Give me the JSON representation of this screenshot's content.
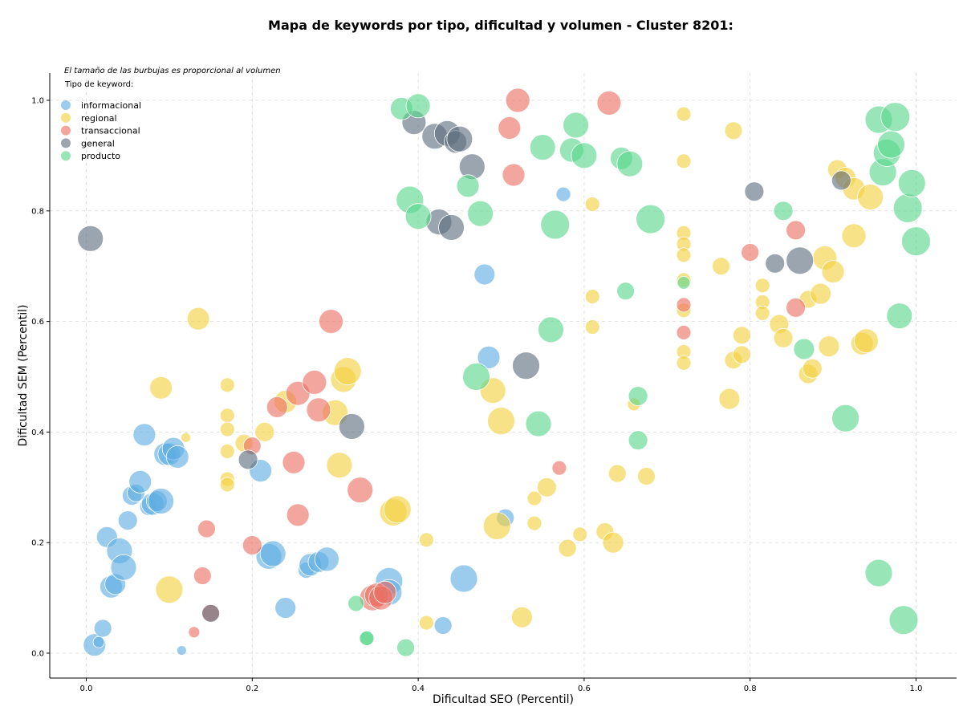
{
  "chart_data": {
    "type": "scatter",
    "title": "Mapa de keywords por tipo, dificultad y volumen - Cluster 8201:",
    "xlabel": "Dificultad SEO (Percentil)",
    "ylabel": "Dificultad SEM (Percentil)",
    "xlim": [
      -0.045,
      1.05
    ],
    "ylim": [
      -0.045,
      1.05
    ],
    "x_ticks": [
      "0.0",
      "0.2",
      "0.4",
      "0.6",
      "0.8",
      "1.0"
    ],
    "y_ticks": [
      "0.0",
      "0.2",
      "0.4",
      "0.6",
      "0.8",
      "1.0"
    ],
    "grid": true,
    "legend_position": "top-left",
    "annotation": "El tamaño de las burbujas es proporcional al volumen",
    "legend_title": "Tipo de keyword:",
    "series": [
      {
        "name": "informacional",
        "color": "#5DADE2",
        "points": [
          [
            0.01,
            0.015,
            14
          ],
          [
            0.015,
            0.02,
            7
          ],
          [
            0.02,
            0.045,
            11
          ],
          [
            0.025,
            0.21,
            13
          ],
          [
            0.03,
            0.12,
            14
          ],
          [
            0.035,
            0.125,
            13
          ],
          [
            0.04,
            0.185,
            16
          ],
          [
            0.045,
            0.155,
            16
          ],
          [
            0.05,
            0.24,
            12
          ],
          [
            0.055,
            0.285,
            12
          ],
          [
            0.06,
            0.29,
            11
          ],
          [
            0.065,
            0.31,
            14
          ],
          [
            0.07,
            0.395,
            14
          ],
          [
            0.075,
            0.265,
            11
          ],
          [
            0.08,
            0.27,
            14
          ],
          [
            0.085,
            0.275,
            13
          ],
          [
            0.09,
            0.275,
            16
          ],
          [
            0.095,
            0.36,
            14
          ],
          [
            0.1,
            0.36,
            14
          ],
          [
            0.105,
            0.37,
            14
          ],
          [
            0.11,
            0.355,
            14
          ],
          [
            0.115,
            0.005,
            6
          ],
          [
            0.21,
            0.33,
            14
          ],
          [
            0.22,
            0.175,
            16
          ],
          [
            0.225,
            0.18,
            16
          ],
          [
            0.24,
            0.082,
            13
          ],
          [
            0.265,
            0.15,
            10
          ],
          [
            0.27,
            0.16,
            14
          ],
          [
            0.28,
            0.165,
            13
          ],
          [
            0.29,
            0.17,
            15
          ],
          [
            0.365,
            0.13,
            17
          ],
          [
            0.365,
            0.11,
            16
          ],
          [
            0.43,
            0.05,
            11
          ],
          [
            0.455,
            0.135,
            17
          ],
          [
            0.48,
            0.685,
            13
          ],
          [
            0.485,
            0.535,
            14
          ],
          [
            0.505,
            0.245,
            11
          ],
          [
            0.575,
            0.83,
            9
          ]
        ]
      },
      {
        "name": "regional",
        "color": "#F4D03F",
        "points": [
          [
            0.09,
            0.48,
            14
          ],
          [
            0.1,
            0.115,
            17
          ],
          [
            0.12,
            0.39,
            6
          ],
          [
            0.135,
            0.605,
            14
          ],
          [
            0.17,
            0.485,
            9
          ],
          [
            0.17,
            0.43,
            9
          ],
          [
            0.17,
            0.405,
            9
          ],
          [
            0.17,
            0.365,
            9
          ],
          [
            0.17,
            0.315,
            9
          ],
          [
            0.17,
            0.305,
            9
          ],
          [
            0.19,
            0.38,
            11
          ],
          [
            0.215,
            0.4,
            12
          ],
          [
            0.24,
            0.455,
            14
          ],
          [
            0.3,
            0.435,
            16
          ],
          [
            0.305,
            0.34,
            16
          ],
          [
            0.31,
            0.495,
            16
          ],
          [
            0.315,
            0.51,
            17
          ],
          [
            0.37,
            0.255,
            17
          ],
          [
            0.375,
            0.26,
            17
          ],
          [
            0.41,
            0.055,
            9
          ],
          [
            0.41,
            0.205,
            9
          ],
          [
            0.49,
            0.475,
            16
          ],
          [
            0.495,
            0.23,
            17
          ],
          [
            0.5,
            0.42,
            17
          ],
          [
            0.525,
            0.065,
            13
          ],
          [
            0.54,
            0.28,
            9
          ],
          [
            0.54,
            0.235,
            9
          ],
          [
            0.555,
            0.3,
            12
          ],
          [
            0.58,
            0.19,
            11
          ],
          [
            0.595,
            0.215,
            9
          ],
          [
            0.61,
            0.812,
            9
          ],
          [
            0.61,
            0.645,
            9
          ],
          [
            0.61,
            0.59,
            9
          ],
          [
            0.625,
            0.22,
            11
          ],
          [
            0.635,
            0.2,
            13
          ],
          [
            0.64,
            0.325,
            11
          ],
          [
            0.66,
            0.45,
            8
          ],
          [
            0.675,
            0.32,
            11
          ],
          [
            0.72,
            0.975,
            9
          ],
          [
            0.72,
            0.89,
            9
          ],
          [
            0.72,
            0.76,
            9
          ],
          [
            0.72,
            0.74,
            9
          ],
          [
            0.72,
            0.72,
            9
          ],
          [
            0.72,
            0.675,
            9
          ],
          [
            0.72,
            0.62,
            9
          ],
          [
            0.72,
            0.545,
            9
          ],
          [
            0.72,
            0.525,
            9
          ],
          [
            0.765,
            0.7,
            11
          ],
          [
            0.775,
            0.46,
            13
          ],
          [
            0.78,
            0.945,
            11
          ],
          [
            0.78,
            0.53,
            11
          ],
          [
            0.79,
            0.54,
            11
          ],
          [
            0.79,
            0.575,
            11
          ],
          [
            0.815,
            0.665,
            9
          ],
          [
            0.815,
            0.635,
            9
          ],
          [
            0.815,
            0.615,
            9
          ],
          [
            0.835,
            0.595,
            12
          ],
          [
            0.84,
            0.57,
            12
          ],
          [
            0.87,
            0.64,
            11
          ],
          [
            0.87,
            0.505,
            12
          ],
          [
            0.875,
            0.515,
            12
          ],
          [
            0.885,
            0.65,
            13
          ],
          [
            0.89,
            0.715,
            15
          ],
          [
            0.895,
            0.555,
            13
          ],
          [
            0.9,
            0.69,
            14
          ],
          [
            0.905,
            0.875,
            12
          ],
          [
            0.915,
            0.86,
            13
          ],
          [
            0.925,
            0.755,
            15
          ],
          [
            0.925,
            0.84,
            14
          ],
          [
            0.935,
            0.56,
            14
          ],
          [
            0.94,
            0.565,
            15
          ],
          [
            0.945,
            0.825,
            16
          ]
        ]
      },
      {
        "name": "transaccional",
        "color": "#EC7063",
        "points": [
          [
            0.13,
            0.038,
            7
          ],
          [
            0.14,
            0.14,
            11
          ],
          [
            0.145,
            0.225,
            11
          ],
          [
            0.15,
            0.073,
            11
          ],
          [
            0.2,
            0.375,
            11
          ],
          [
            0.2,
            0.195,
            12
          ],
          [
            0.23,
            0.445,
            13
          ],
          [
            0.25,
            0.345,
            14
          ],
          [
            0.255,
            0.47,
            15
          ],
          [
            0.255,
            0.25,
            14
          ],
          [
            0.275,
            0.49,
            15
          ],
          [
            0.28,
            0.44,
            15
          ],
          [
            0.295,
            0.6,
            15
          ],
          [
            0.33,
            0.295,
            16
          ],
          [
            0.345,
            0.1,
            16
          ],
          [
            0.35,
            0.105,
            15
          ],
          [
            0.355,
            0.1,
            15
          ],
          [
            0.36,
            0.11,
            14
          ],
          [
            0.51,
            0.95,
            14
          ],
          [
            0.515,
            0.865,
            14
          ],
          [
            0.52,
            1.0,
            15
          ],
          [
            0.57,
            0.335,
            9
          ],
          [
            0.63,
            0.995,
            15
          ],
          [
            0.72,
            0.63,
            9
          ],
          [
            0.72,
            0.58,
            9
          ],
          [
            0.8,
            0.725,
            11
          ],
          [
            0.855,
            0.765,
            12
          ],
          [
            0.855,
            0.625,
            12
          ]
        ]
      },
      {
        "name": "general",
        "color": "#5D6D7E",
        "points": [
          [
            0.005,
            0.75,
            16
          ],
          [
            0.15,
            0.072,
            11
          ],
          [
            0.195,
            0.35,
            12
          ],
          [
            0.32,
            0.41,
            16
          ],
          [
            0.395,
            0.96,
            15
          ],
          [
            0.42,
            0.935,
            16
          ],
          [
            0.425,
            0.78,
            16
          ],
          [
            0.435,
            0.94,
            16
          ],
          [
            0.44,
            0.77,
            16
          ],
          [
            0.445,
            0.925,
            14
          ],
          [
            0.45,
            0.93,
            16
          ],
          [
            0.465,
            0.88,
            16
          ],
          [
            0.53,
            0.52,
            17
          ],
          [
            0.805,
            0.835,
            12
          ],
          [
            0.83,
            0.705,
            12
          ],
          [
            0.86,
            0.71,
            17
          ],
          [
            0.91,
            0.855,
            12
          ]
        ]
      },
      {
        "name": "producto",
        "color": "#58D68D",
        "points": [
          [
            0.325,
            0.09,
            10
          ],
          [
            0.338,
            0.027,
            9
          ],
          [
            0.338,
            0.027,
            9
          ],
          [
            0.38,
            0.985,
            14
          ],
          [
            0.385,
            0.01,
            11
          ],
          [
            0.39,
            0.82,
            17
          ],
          [
            0.4,
            0.79,
            16
          ],
          [
            0.4,
            0.99,
            15
          ],
          [
            0.46,
            0.845,
            14
          ],
          [
            0.47,
            0.5,
            17
          ],
          [
            0.475,
            0.795,
            16
          ],
          [
            0.55,
            0.915,
            16
          ],
          [
            0.56,
            0.585,
            16
          ],
          [
            0.545,
            0.415,
            16
          ],
          [
            0.565,
            0.775,
            18
          ],
          [
            0.585,
            0.91,
            15
          ],
          [
            0.59,
            0.955,
            16
          ],
          [
            0.6,
            0.9,
            16
          ],
          [
            0.645,
            0.895,
            14
          ],
          [
            0.65,
            0.655,
            11
          ],
          [
            0.655,
            0.885,
            16
          ],
          [
            0.665,
            0.465,
            12
          ],
          [
            0.665,
            0.385,
            12
          ],
          [
            0.68,
            0.785,
            18
          ],
          [
            0.72,
            0.67,
            8
          ],
          [
            0.84,
            0.8,
            12
          ],
          [
            0.865,
            0.55,
            13
          ],
          [
            0.915,
            0.425,
            17
          ],
          [
            0.955,
            0.145,
            17
          ],
          [
            0.955,
            0.965,
            17
          ],
          [
            0.96,
            0.87,
            17
          ],
          [
            0.965,
            0.905,
            17
          ],
          [
            0.97,
            0.92,
            17
          ],
          [
            0.975,
            0.97,
            18
          ],
          [
            0.98,
            0.61,
            16
          ],
          [
            0.985,
            0.06,
            18
          ],
          [
            0.99,
            0.805,
            18
          ],
          [
            0.995,
            0.85,
            17
          ],
          [
            1.0,
            0.745,
            18
          ]
        ]
      }
    ]
  }
}
